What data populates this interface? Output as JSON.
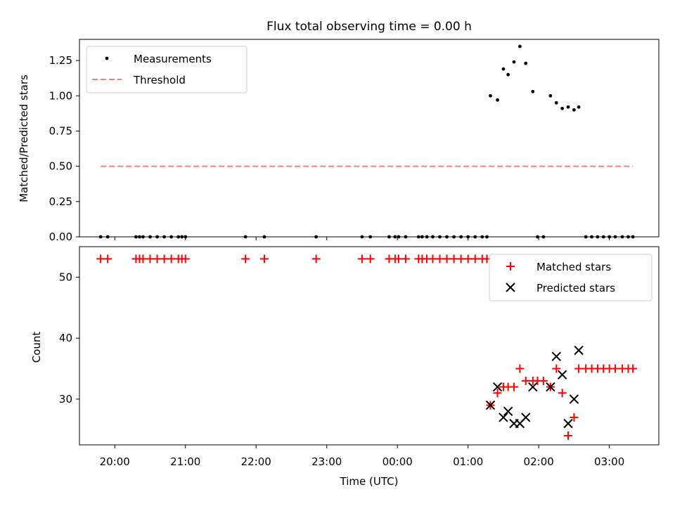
{
  "chart_data": [
    {
      "type": "scatter",
      "title": "Flux total observing time = 0.00 h",
      "xlabel": "",
      "ylabel": "Matched/Predicted stars",
      "xlim": [
        "19:30",
        "03:42"
      ],
      "ylim": [
        0,
        1.4
      ],
      "yticks": [
        0.0,
        0.25,
        0.5,
        0.75,
        1.0,
        1.25
      ],
      "ytick_labels": [
        "0.00",
        "0.25",
        "0.50",
        "0.75",
        "1.00",
        "1.25"
      ],
      "legend": "top-left",
      "series": [
        {
          "name": "Measurements",
          "color": "#000000",
          "marker": "dot",
          "points": [
            [
              "19:48",
              0
            ],
            [
              "19:54",
              0
            ],
            [
              "20:18",
              0
            ],
            [
              "20:21",
              0
            ],
            [
              "20:24",
              0
            ],
            [
              "20:30",
              0
            ],
            [
              "20:36",
              0
            ],
            [
              "20:42",
              0
            ],
            [
              "20:48",
              0
            ],
            [
              "20:54",
              0
            ],
            [
              "20:57",
              0
            ],
            [
              "21:00",
              0
            ],
            [
              "21:51",
              0
            ],
            [
              "22:07",
              0
            ],
            [
              "22:51",
              0
            ],
            [
              "23:30",
              0
            ],
            [
              "23:37",
              0
            ],
            [
              "23:53",
              0
            ],
            [
              "23:58",
              0
            ],
            [
              "00:01",
              0
            ],
            [
              "00:07",
              0
            ],
            [
              "00:18",
              0
            ],
            [
              "00:21",
              0
            ],
            [
              "00:25",
              0
            ],
            [
              "00:30",
              0
            ],
            [
              "00:36",
              0
            ],
            [
              "00:42",
              0
            ],
            [
              "00:48",
              0
            ],
            [
              "00:54",
              0
            ],
            [
              "01:00",
              0
            ],
            [
              "01:06",
              0
            ],
            [
              "01:12",
              0
            ],
            [
              "01:16",
              0
            ],
            [
              "01:19",
              1.0
            ],
            [
              "01:25",
              0.97
            ],
            [
              "01:30",
              1.19
            ],
            [
              "01:34",
              1.15
            ],
            [
              "01:39",
              1.24
            ],
            [
              "01:44",
              1.35
            ],
            [
              "01:49",
              1.23
            ],
            [
              "01:55",
              1.03
            ],
            [
              "01:59",
              0
            ],
            [
              "02:04",
              0
            ],
            [
              "02:10",
              1.0
            ],
            [
              "02:15",
              0.95
            ],
            [
              "02:20",
              0.91
            ],
            [
              "02:25",
              0.92
            ],
            [
              "02:30",
              0.9
            ],
            [
              "02:34",
              0.92
            ],
            [
              "02:40",
              0
            ],
            [
              "02:45",
              0
            ],
            [
              "02:50",
              0
            ],
            [
              "02:55",
              0
            ],
            [
              "03:00",
              0
            ],
            [
              "03:05",
              0
            ],
            [
              "03:11",
              0
            ],
            [
              "03:16",
              0
            ],
            [
              "03:20",
              0
            ]
          ]
        },
        {
          "name": "Threshold",
          "color": "#ff7f7f",
          "style": "dashed",
          "points": [
            [
              "19:48",
              0.5
            ],
            [
              "03:20",
              0.5
            ]
          ]
        }
      ]
    },
    {
      "type": "scatter",
      "title": "",
      "xlabel": "Time (UTC)",
      "ylabel": "Count",
      "xlim": [
        "19:30",
        "03:42"
      ],
      "xtick_labels": [
        "20:00",
        "21:00",
        "22:00",
        "23:00",
        "00:00",
        "01:00",
        "02:00",
        "03:00"
      ],
      "ylim": [
        22.5,
        55
      ],
      "yticks": [
        30,
        40,
        50
      ],
      "ytick_labels": [
        "30",
        "40",
        "50"
      ],
      "legend": "top-right",
      "series": [
        {
          "name": "Matched stars",
          "color": "#ff0000",
          "marker": "plus",
          "points": [
            [
              "19:48",
              53
            ],
            [
              "19:54",
              53
            ],
            [
              "20:18",
              53
            ],
            [
              "20:21",
              53
            ],
            [
              "20:24",
              53
            ],
            [
              "20:30",
              53
            ],
            [
              "20:36",
              53
            ],
            [
              "20:42",
              53
            ],
            [
              "20:48",
              53
            ],
            [
              "20:54",
              53
            ],
            [
              "20:57",
              53
            ],
            [
              "21:00",
              53
            ],
            [
              "21:51",
              53
            ],
            [
              "22:07",
              53
            ],
            [
              "22:51",
              53
            ],
            [
              "23:30",
              53
            ],
            [
              "23:37",
              53
            ],
            [
              "23:53",
              53
            ],
            [
              "23:58",
              53
            ],
            [
              "00:01",
              53
            ],
            [
              "00:07",
              53
            ],
            [
              "00:18",
              53
            ],
            [
              "00:21",
              53
            ],
            [
              "00:25",
              53
            ],
            [
              "00:30",
              53
            ],
            [
              "00:36",
              53
            ],
            [
              "00:42",
              53
            ],
            [
              "00:48",
              53
            ],
            [
              "00:54",
              53
            ],
            [
              "01:00",
              53
            ],
            [
              "01:06",
              53
            ],
            [
              "01:12",
              53
            ],
            [
              "01:16",
              53
            ],
            [
              "01:19",
              29
            ],
            [
              "01:25",
              31
            ],
            [
              "01:30",
              32
            ],
            [
              "01:34",
              32
            ],
            [
              "01:39",
              32
            ],
            [
              "01:44",
              35
            ],
            [
              "01:49",
              33
            ],
            [
              "01:55",
              33
            ],
            [
              "01:59",
              33
            ],
            [
              "02:04",
              33
            ],
            [
              "02:10",
              32
            ],
            [
              "02:15",
              35
            ],
            [
              "02:20",
              31
            ],
            [
              "02:25",
              24
            ],
            [
              "02:30",
              27
            ],
            [
              "02:34",
              35
            ],
            [
              "02:40",
              35
            ],
            [
              "02:45",
              35
            ],
            [
              "02:50",
              35
            ],
            [
              "02:55",
              35
            ],
            [
              "03:00",
              35
            ],
            [
              "03:05",
              35
            ],
            [
              "03:11",
              35
            ],
            [
              "03:16",
              35
            ],
            [
              "03:20",
              35
            ]
          ]
        },
        {
          "name": "Predicted stars",
          "color": "#000000",
          "marker": "x",
          "points": [
            [
              "01:19",
              29
            ],
            [
              "01:25",
              32
            ],
            [
              "01:30",
              27
            ],
            [
              "01:34",
              28
            ],
            [
              "01:39",
              26
            ],
            [
              "01:44",
              26
            ],
            [
              "01:49",
              27
            ],
            [
              "01:55",
              32
            ],
            [
              "02:10",
              32
            ],
            [
              "02:15",
              37
            ],
            [
              "02:20",
              34
            ],
            [
              "02:25",
              26
            ],
            [
              "02:30",
              30
            ],
            [
              "02:34",
              38
            ]
          ]
        }
      ]
    }
  ]
}
